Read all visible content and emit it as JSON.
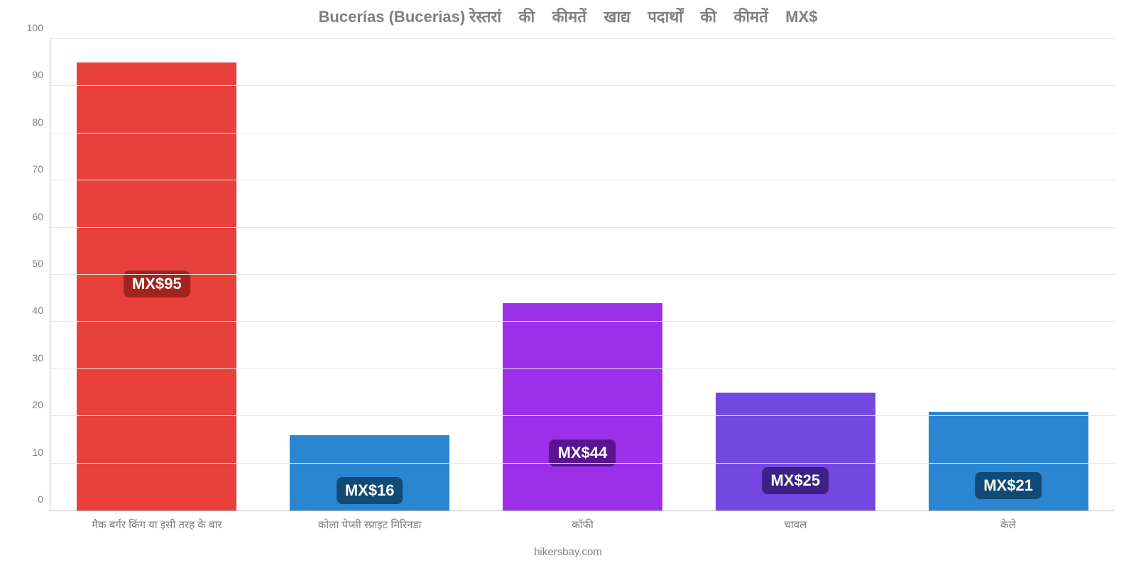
{
  "chart": {
    "type": "bar",
    "title": "Bucerías (Bucerias) रेस्तरां    की    कीमतें    खाद्य    पदार्थों    की    कीमतें    MX$",
    "title_fontsize": 22,
    "title_color": "#808080",
    "background_color": "#ffffff",
    "grid_color": "#e6e6e6",
    "axis_color": "#c0c0c0",
    "tick_label_color": "#808080",
    "ylim": [
      0,
      100
    ],
    "ytick_step": 10,
    "yticks": [
      0,
      10,
      20,
      30,
      40,
      50,
      60,
      70,
      80,
      90,
      100
    ],
    "bar_width": 0.75,
    "categories": [
      "मैक बर्गर किंग या इसी तरह के बार",
      "कोला पेप्सी स्प्राइट मिरिनडा",
      "कॉफी",
      "चावल",
      "केले"
    ],
    "values": [
      95,
      16,
      44,
      25,
      21
    ],
    "value_labels": [
      "MX$95",
      "MX$16",
      "MX$44",
      "MX$25",
      "MX$21"
    ],
    "bar_colors": [
      "#e8403a",
      "#2a86d1",
      "#9b30e8",
      "#7347e0",
      "#2a86d1"
    ],
    "badge_colors": [
      "#a5231e",
      "#104a75",
      "#5a148f",
      "#3d2186",
      "#104a75"
    ],
    "badge_fontsize": 22,
    "attribution": "hikersbay.com"
  }
}
